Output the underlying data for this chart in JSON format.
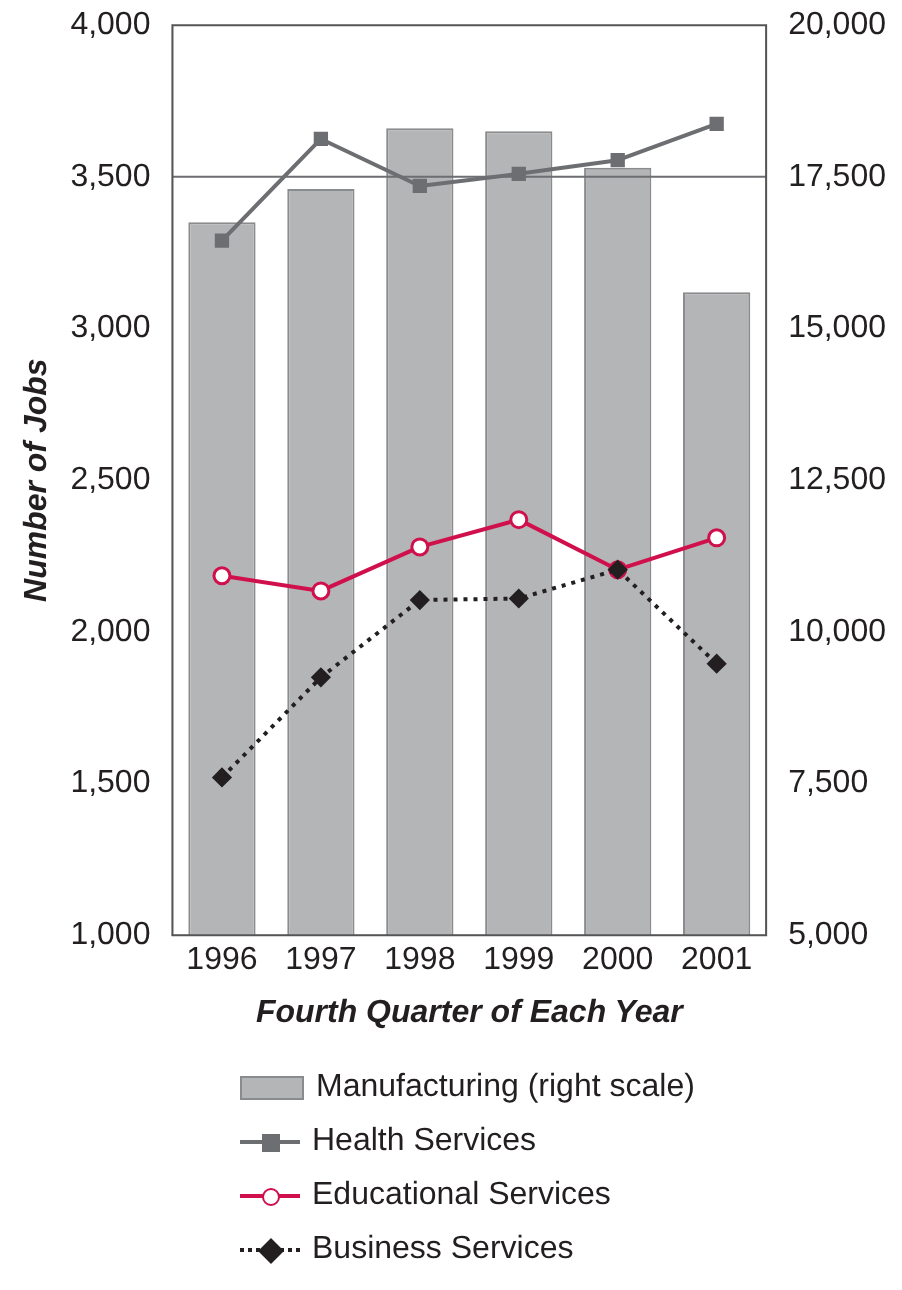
{
  "chart_data": {
    "type": "bar",
    "xlabel": "Fourth Quarter of Each Year",
    "ylabel": "Number of Jobs",
    "categories": [
      "1996",
      "1997",
      "1998",
      "1999",
      "2000",
      "2001"
    ],
    "series": [
      {
        "name": "Manufacturing (right scale)",
        "axis": "y2",
        "color": "#b4b5b7",
        "values": [
          16750,
          17300,
          18300,
          18250,
          17650,
          15600
        ]
      },
      {
        "name": "Health Services",
        "type": "line",
        "color": "#6d6e71",
        "marker": "square",
        "line_style": "solid",
        "values": [
          3290,
          3625,
          3470,
          3510,
          3555,
          3675
        ]
      },
      {
        "name": "Educational Services",
        "type": "line",
        "color": "#d0104c",
        "marker": "circle",
        "line_style": "solid",
        "values": [
          2185,
          2135,
          2280,
          2370,
          2205,
          2310
        ]
      },
      {
        "name": "Business Services",
        "type": "line",
        "color": "#231f20",
        "marker": "diamond",
        "line_style": "dotted",
        "values": [
          1520,
          1850,
          2105,
          2110,
          2205,
          1895
        ]
      }
    ],
    "ylim": [
      1000,
      4000
    ],
    "yticks": [
      {
        "value": 1000,
        "label": "1,000"
      },
      {
        "value": 1500,
        "label": "1,500"
      },
      {
        "value": 2000,
        "label": "2,000"
      },
      {
        "value": 2500,
        "label": "2,500"
      },
      {
        "value": 3000,
        "label": "3,000"
      },
      {
        "value": 3500,
        "label": "3,500"
      },
      {
        "value": 4000,
        "label": "4,000"
      }
    ],
    "y2lim": [
      5000,
      20000
    ],
    "y2ticks": [
      {
        "value": 5000,
        "label": "5,000"
      },
      {
        "value": 7500,
        "label": "7,500"
      },
      {
        "value": 10000,
        "label": "10,000"
      },
      {
        "value": 12500,
        "label": "12,500"
      },
      {
        "value": 15000,
        "label": "15,000"
      },
      {
        "value": 17500,
        "label": "17,500"
      },
      {
        "value": 20000,
        "label": "20,000"
      }
    ],
    "ref_lines": [
      {
        "axis": "y",
        "value": 3500,
        "color": "#6d6e71"
      }
    ],
    "grid": false,
    "legend": "bottom"
  }
}
